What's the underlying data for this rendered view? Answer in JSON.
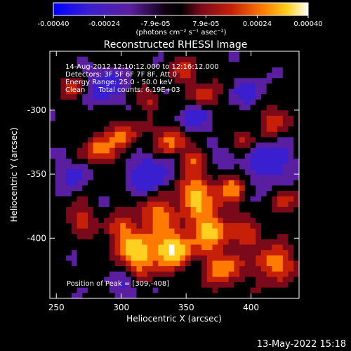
{
  "colorbar": {
    "ticks": [
      "-0.00040",
      "-0.00024",
      "-7.9e-05",
      "7.9e-05",
      "0.00024",
      "0.00040"
    ],
    "tick_values": [
      -0.0004,
      -0.00024,
      -7.9e-05,
      7.9e-05,
      0.00024,
      0.0004
    ],
    "range": [
      -0.0004,
      0.0004
    ],
    "unit_label": "(photons cm⁻² s⁻¹ asec⁻²)",
    "colors": [
      "#0000ff",
      "#3a1fd0",
      "#5a1fa0",
      "#000000",
      "#7a0a1a",
      "#c62008",
      "#ff7a00",
      "#ffd020",
      "#ffffff"
    ]
  },
  "title": "Reconstructed RHESSI Image",
  "info": {
    "time": "14-Aug-2012 12:10:12.000 to 12:16:12.000",
    "detectors": "Detectors: 3F 5F 6F 7F 8F, Att 0",
    "energy": "Energy Range: 25.0 - 50.0 keV",
    "clean": "Clean      Total counts: 6.19E+03"
  },
  "peak": "Position of Peak = [309,-408]",
  "x_axis": {
    "label": "Heliocentric X (arcsec)",
    "ticks": [
      "250",
      "300",
      "350",
      "400"
    ],
    "tick_values": [
      250,
      300,
      350,
      400
    ],
    "range": [
      245,
      437
    ]
  },
  "y_axis": {
    "label": "Heliocentric Y (arcsec)",
    "ticks": [
      "-300",
      "-350",
      "-400"
    ],
    "tick_values": [
      -300,
      -350,
      -400
    ],
    "range": [
      -447,
      -254
    ]
  },
  "timestamp": "13-May-2022 15:18"
}
